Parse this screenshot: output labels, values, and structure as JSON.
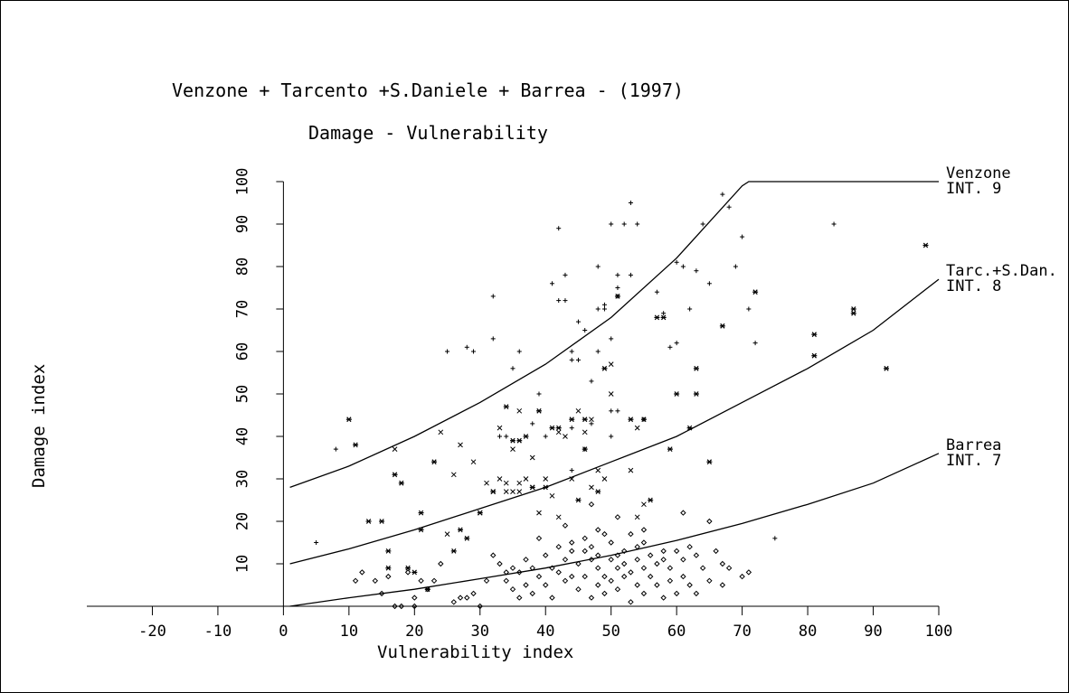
{
  "chart_data": {
    "type": "scatter",
    "title": "Venzone + Tarcento +S.Daniele + Barrea - (1997)",
    "subtitle": "Damage - Vulnerability",
    "xlabel": "Vulnerability index",
    "ylabel": "Damage index",
    "xlim": [
      -30,
      100
    ],
    "ylim": [
      0,
      100
    ],
    "xticks": [
      -20,
      -10,
      0,
      10,
      20,
      30,
      40,
      50,
      60,
      70,
      80,
      90,
      100
    ],
    "yticks": [
      10,
      20,
      30,
      40,
      50,
      60,
      70,
      80,
      90,
      100
    ],
    "grid": false,
    "curves": [
      {
        "name": "Venzone",
        "label_line1": "Venzone",
        "label_line2": "INT.  9",
        "x": [
          1,
          10,
          20,
          30,
          40,
          50,
          60,
          70,
          71,
          100
        ],
        "y": [
          28,
          33,
          40,
          48,
          57,
          68,
          82,
          99,
          100,
          100
        ]
      },
      {
        "name": "Tarc.+S.Dan.",
        "label_line1": "Tarc.+S.Dan.",
        "label_line2": "INT.  8",
        "x": [
          1,
          10,
          20,
          30,
          40,
          50,
          60,
          70,
          80,
          90,
          100
        ],
        "y": [
          10,
          13.5,
          18,
          23,
          28,
          34,
          40,
          48,
          56,
          65,
          77
        ]
      },
      {
        "name": "Barrea",
        "label_line1": "Barrea",
        "label_line2": "INT.  7",
        "x": [
          1,
          10,
          20,
          30,
          40,
          50,
          60,
          70,
          80,
          90,
          100
        ],
        "y": [
          0,
          2,
          4,
          6.5,
          9,
          12,
          15.5,
          19.5,
          24,
          29,
          36
        ]
      }
    ],
    "series": [
      {
        "marker": "+",
        "points": [
          [
            5,
            15
          ],
          [
            8,
            37
          ],
          [
            25,
            60
          ],
          [
            28,
            61
          ],
          [
            29,
            60
          ],
          [
            32,
            73
          ],
          [
            32,
            63
          ],
          [
            35,
            56
          ],
          [
            36,
            60
          ],
          [
            38,
            43
          ],
          [
            39,
            50
          ],
          [
            41,
            76
          ],
          [
            42,
            89
          ],
          [
            42,
            72
          ],
          [
            43,
            78
          ],
          [
            43,
            72
          ],
          [
            44,
            58
          ],
          [
            44,
            60
          ],
          [
            45,
            67
          ],
          [
            45,
            58
          ],
          [
            46,
            65
          ],
          [
            47,
            53
          ],
          [
            48,
            80
          ],
          [
            48,
            60
          ],
          [
            48,
            70
          ],
          [
            49,
            70
          ],
          [
            49,
            71
          ],
          [
            50,
            90
          ],
          [
            50,
            63
          ],
          [
            51,
            78
          ],
          [
            51,
            75
          ],
          [
            51,
            73
          ],
          [
            52,
            90
          ],
          [
            53,
            95
          ],
          [
            53,
            78
          ],
          [
            54,
            90
          ],
          [
            55,
            44
          ],
          [
            57,
            74
          ],
          [
            58,
            69
          ],
          [
            59,
            61
          ],
          [
            60,
            81
          ],
          [
            60,
            62
          ],
          [
            61,
            80
          ],
          [
            62,
            70
          ],
          [
            63,
            79
          ],
          [
            64,
            90
          ],
          [
            65,
            76
          ],
          [
            67,
            97
          ],
          [
            68,
            94
          ],
          [
            69,
            80
          ],
          [
            70,
            87
          ],
          [
            71,
            70
          ],
          [
            72,
            62
          ],
          [
            75,
            16
          ],
          [
            84,
            90
          ],
          [
            33,
            40
          ],
          [
            34,
            40
          ],
          [
            40,
            40
          ],
          [
            44,
            42
          ],
          [
            47,
            43
          ],
          [
            50,
            46
          ],
          [
            51,
            46
          ],
          [
            44,
            32
          ],
          [
            46,
            37
          ],
          [
            50,
            40
          ]
        ]
      },
      {
        "marker": "x",
        "points": [
          [
            17,
            37
          ],
          [
            24,
            41
          ],
          [
            25,
            17
          ],
          [
            26,
            31
          ],
          [
            27,
            38
          ],
          [
            29,
            34
          ],
          [
            30,
            22
          ],
          [
            32,
            27
          ],
          [
            33,
            42
          ],
          [
            33,
            30
          ],
          [
            34,
            29
          ],
          [
            34,
            27
          ],
          [
            35,
            27
          ],
          [
            36,
            27
          ],
          [
            36,
            29
          ],
          [
            37,
            30
          ],
          [
            38,
            28
          ],
          [
            39,
            22
          ],
          [
            40,
            30
          ],
          [
            41,
            26
          ],
          [
            42,
            41
          ],
          [
            44,
            30
          ],
          [
            45,
            46
          ],
          [
            46,
            41
          ],
          [
            47,
            28
          ],
          [
            47,
            44
          ],
          [
            48,
            32
          ],
          [
            49,
            30
          ],
          [
            50,
            50
          ],
          [
            50,
            57
          ],
          [
            53,
            32
          ],
          [
            54,
            42
          ],
          [
            54,
            21
          ],
          [
            55,
            24
          ],
          [
            36,
            46
          ],
          [
            38,
            35
          ],
          [
            42,
            21
          ],
          [
            31,
            29
          ],
          [
            35,
            37
          ],
          [
            43,
            40
          ]
        ]
      },
      {
        "marker": "*",
        "points": [
          [
            10,
            44
          ],
          [
            11,
            38
          ],
          [
            15,
            20
          ],
          [
            16,
            9
          ],
          [
            17,
            31
          ],
          [
            18,
            29
          ],
          [
            19,
            9
          ],
          [
            21,
            22
          ],
          [
            21,
            18
          ],
          [
            23,
            34
          ],
          [
            26,
            13
          ],
          [
            27,
            18
          ],
          [
            30,
            22
          ],
          [
            32,
            27
          ],
          [
            34,
            47
          ],
          [
            35,
            39
          ],
          [
            36,
            39
          ],
          [
            37,
            40
          ],
          [
            38,
            28
          ],
          [
            39,
            46
          ],
          [
            40,
            28
          ],
          [
            41,
            42
          ],
          [
            42,
            42
          ],
          [
            44,
            44
          ],
          [
            45,
            25
          ],
          [
            46,
            44
          ],
          [
            46,
            37
          ],
          [
            48,
            27
          ],
          [
            49,
            56
          ],
          [
            51,
            73
          ],
          [
            53,
            44
          ],
          [
            55,
            44
          ],
          [
            56,
            25
          ],
          [
            57,
            68
          ],
          [
            58,
            68
          ],
          [
            59,
            37
          ],
          [
            60,
            50
          ],
          [
            62,
            42
          ],
          [
            63,
            56
          ],
          [
            63,
            50
          ],
          [
            65,
            34
          ],
          [
            67,
            66
          ],
          [
            72,
            74
          ],
          [
            81,
            64
          ],
          [
            81,
            59
          ],
          [
            87,
            70
          ],
          [
            87,
            69
          ],
          [
            92,
            56
          ],
          [
            98,
            85
          ],
          [
            16,
            13
          ],
          [
            20,
            8
          ],
          [
            22,
            4
          ],
          [
            28,
            16
          ],
          [
            13,
            20
          ]
        ]
      },
      {
        "marker": "◇",
        "points": [
          [
            11,
            6
          ],
          [
            12,
            8
          ],
          [
            14,
            6
          ],
          [
            15,
            3
          ],
          [
            16,
            7
          ],
          [
            17,
            0
          ],
          [
            18,
            0
          ],
          [
            19,
            8
          ],
          [
            20,
            2
          ],
          [
            20,
            0
          ],
          [
            21,
            6
          ],
          [
            22,
            4
          ],
          [
            23,
            6
          ],
          [
            24,
            10
          ],
          [
            26,
            1
          ],
          [
            27,
            2
          ],
          [
            28,
            2
          ],
          [
            29,
            3
          ],
          [
            30,
            0
          ],
          [
            31,
            6
          ],
          [
            32,
            12
          ],
          [
            33,
            10
          ],
          [
            34,
            8
          ],
          [
            34,
            6
          ],
          [
            35,
            9
          ],
          [
            35,
            4
          ],
          [
            36,
            2
          ],
          [
            36,
            8
          ],
          [
            37,
            11
          ],
          [
            37,
            5
          ],
          [
            38,
            3
          ],
          [
            38,
            9
          ],
          [
            39,
            7
          ],
          [
            40,
            12
          ],
          [
            40,
            5
          ],
          [
            41,
            2
          ],
          [
            41,
            9
          ],
          [
            42,
            14
          ],
          [
            42,
            8
          ],
          [
            43,
            6
          ],
          [
            43,
            11
          ],
          [
            44,
            15
          ],
          [
            44,
            7
          ],
          [
            45,
            4
          ],
          [
            45,
            10
          ],
          [
            46,
            16
          ],
          [
            46,
            13
          ],
          [
            46,
            7
          ],
          [
            47,
            2
          ],
          [
            47,
            11
          ],
          [
            47,
            14
          ],
          [
            48,
            12
          ],
          [
            48,
            9
          ],
          [
            48,
            5
          ],
          [
            49,
            17
          ],
          [
            49,
            7
          ],
          [
            49,
            3
          ],
          [
            50,
            15
          ],
          [
            50,
            11
          ],
          [
            50,
            6
          ],
          [
            51,
            12
          ],
          [
            51,
            9
          ],
          [
            51,
            4
          ],
          [
            52,
            13
          ],
          [
            52,
            10
          ],
          [
            52,
            7
          ],
          [
            53,
            17
          ],
          [
            53,
            8
          ],
          [
            53,
            1
          ],
          [
            54,
            14
          ],
          [
            54,
            11
          ],
          [
            54,
            5
          ],
          [
            55,
            15
          ],
          [
            55,
            9
          ],
          [
            55,
            3
          ],
          [
            56,
            12
          ],
          [
            56,
            7
          ],
          [
            57,
            10
          ],
          [
            57,
            5
          ],
          [
            58,
            13
          ],
          [
            58,
            2
          ],
          [
            59,
            9
          ],
          [
            59,
            6
          ],
          [
            60,
            13
          ],
          [
            60,
            3
          ],
          [
            61,
            11
          ],
          [
            61,
            7
          ],
          [
            62,
            14
          ],
          [
            62,
            5
          ],
          [
            63,
            12
          ],
          [
            63,
            3
          ],
          [
            64,
            9
          ],
          [
            65,
            6
          ],
          [
            66,
            13
          ],
          [
            67,
            5
          ],
          [
            67,
            10
          ],
          [
            68,
            9
          ],
          [
            70,
            7
          ],
          [
            71,
            8
          ],
          [
            65,
            20
          ],
          [
            61,
            22
          ],
          [
            48,
            18
          ],
          [
            44,
            13
          ],
          [
            39,
            16
          ],
          [
            43,
            19
          ],
          [
            47,
            24
          ],
          [
            51,
            21
          ],
          [
            55,
            18
          ],
          [
            58,
            11
          ]
        ]
      }
    ]
  }
}
